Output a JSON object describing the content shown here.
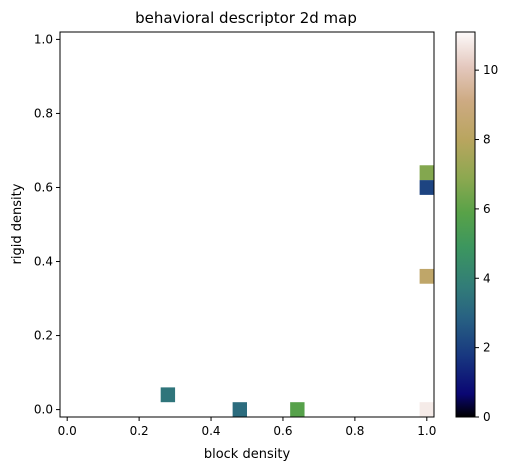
{
  "chart_data": {
    "type": "heatmap",
    "title": "behavioral descriptor 2d map",
    "xlabel": "block density",
    "ylabel": "rigid density",
    "xlim": [
      -0.02,
      1.02
    ],
    "ylim": [
      -0.02,
      1.02
    ],
    "x_ticks": [
      0.0,
      0.2,
      0.4,
      0.6,
      0.8,
      1.0
    ],
    "x_tick_labels": [
      "0.0",
      "0.2",
      "0.4",
      "0.6",
      "0.8",
      "1.0"
    ],
    "y_ticks": [
      0.0,
      0.2,
      0.4,
      0.6,
      0.8,
      1.0
    ],
    "y_tick_labels": [
      "0.0",
      "0.2",
      "0.4",
      "0.6",
      "0.8",
      "1.0"
    ],
    "cell_width": 0.04,
    "cell_height": 0.04,
    "cells": [
      {
        "x": 0.28,
        "y": 0.04,
        "value": 3.5
      },
      {
        "x": 0.48,
        "y": 0.0,
        "value": 3.2
      },
      {
        "x": 0.64,
        "y": 0.0,
        "value": 5.8
      },
      {
        "x": 1.0,
        "y": 0.0,
        "value": 10.8
      },
      {
        "x": 1.0,
        "y": 0.36,
        "value": 8.3
      },
      {
        "x": 1.0,
        "y": 0.6,
        "value": 2.1
      },
      {
        "x": 1.0,
        "y": 0.64,
        "value": 6.7
      }
    ],
    "colorbar": {
      "colormap": "gist_earth",
      "vmin": 0,
      "vmax": 11.1,
      "ticks": [
        0,
        2,
        4,
        6,
        8,
        10
      ],
      "tick_labels": [
        "0",
        "2",
        "4",
        "6",
        "8",
        "10"
      ]
    },
    "grid": false
  }
}
